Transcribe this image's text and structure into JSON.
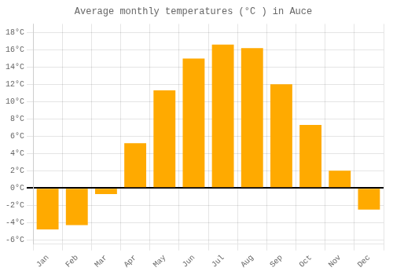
{
  "chart_data": {
    "type": "bar",
    "title": "Average monthly temperatures (°C ) in Auce",
    "categories": [
      "Jan",
      "Feb",
      "Mar",
      "Apr",
      "May",
      "Jun",
      "Jul",
      "Aug",
      "Sep",
      "Oct",
      "Nov",
      "Dec"
    ],
    "values": [
      -4.8,
      -4.3,
      -0.7,
      5.2,
      11.3,
      15.0,
      16.6,
      16.2,
      12.0,
      7.3,
      2.0,
      -2.5
    ],
    "color": "#FFAA00",
    "ylim": [
      -6.5,
      19
    ],
    "yticks": [
      {
        "value": -6,
        "label": "-6°C"
      },
      {
        "value": -4,
        "label": "-4°C"
      },
      {
        "value": -2,
        "label": "-2°C"
      },
      {
        "value": 0,
        "label": "0°C"
      },
      {
        "value": 2,
        "label": "2°C"
      },
      {
        "value": 4,
        "label": "4°C"
      },
      {
        "value": 6,
        "label": "6°C"
      },
      {
        "value": 8,
        "label": "8°C"
      },
      {
        "value": 10,
        "label": "10°C"
      },
      {
        "value": 12,
        "label": "12°C"
      },
      {
        "value": 14,
        "label": "14°C"
      },
      {
        "value": 16,
        "label": "16°C"
      },
      {
        "value": 18,
        "label": "18°C"
      }
    ],
    "grid": true
  }
}
